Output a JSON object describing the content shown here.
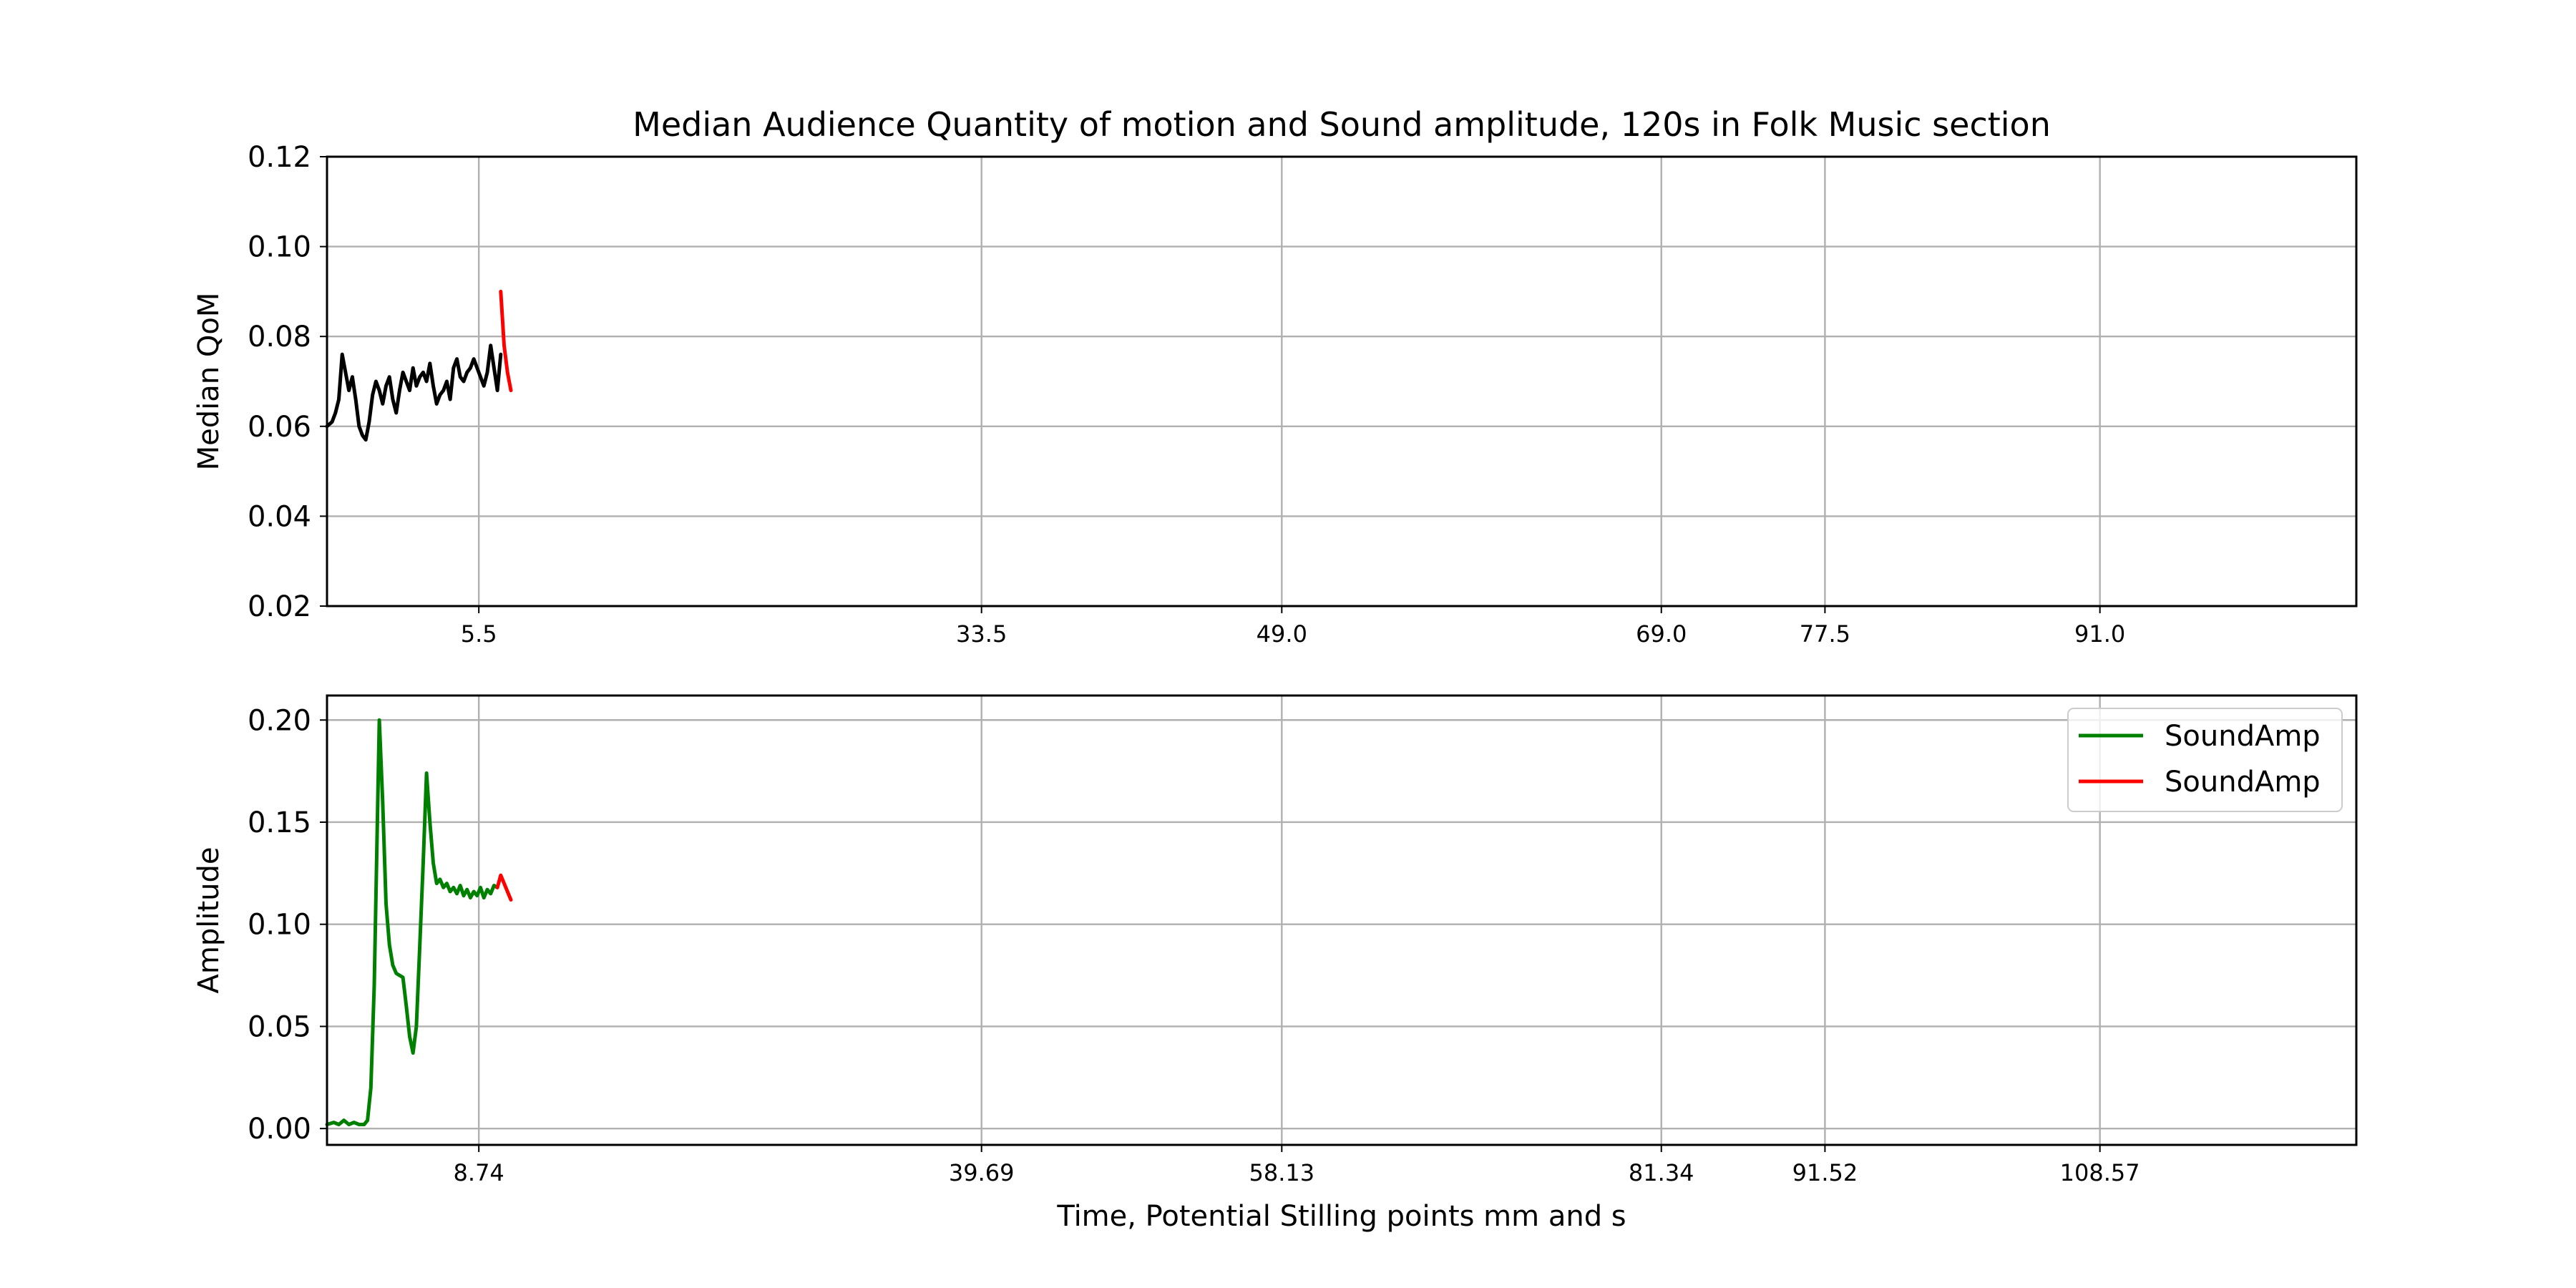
{
  "chart_data": {
    "title": "Median Audience Quantity of motion and Sound amplitude, 120s in Folk Music section",
    "xlabel": "Time, Potential Stilling points mm and s",
    "subplots": [
      {
        "type": "line",
        "ylabel": "Median QoM",
        "ylim": [
          0.02,
          0.12
        ],
        "yticks": [
          "0.12",
          "0.10",
          "0.08",
          "0.06",
          "0.04",
          "0.02"
        ],
        "xlim": [
          -0.3,
          120.0
        ],
        "xtick_values": [
          8.7,
          38.5,
          56.3,
          78.8,
          88.5,
          104.8
        ],
        "xtick_labels": [
          "5.5",
          "33.5",
          "49.0",
          "69.0",
          "77.5",
          "91.0"
        ],
        "grid": true,
        "series": [
          {
            "color": "#000000",
            "x": [
              -0.3,
              0.0,
              0.2,
              0.4,
              0.6,
              0.8,
              1.0,
              1.2,
              1.4,
              1.6,
              1.8,
              2.0,
              2.2,
              2.4,
              2.6,
              2.8,
              3.0,
              3.2,
              3.4,
              3.6,
              3.8,
              4.0,
              4.2,
              4.4,
              4.6,
              4.8,
              5.0,
              5.2,
              5.4,
              5.6,
              5.8,
              6.0,
              6.2,
              6.4,
              6.6,
              6.8,
              7.0,
              7.2,
              7.4,
              7.6,
              7.8,
              8.0,
              8.2,
              8.4,
              8.6,
              8.8,
              9.0,
              9.2,
              9.4,
              9.6,
              9.8,
              10.0
            ],
            "y": [
              0.06,
              0.061,
              0.063,
              0.066,
              0.076,
              0.072,
              0.068,
              0.071,
              0.066,
              0.06,
              0.058,
              0.057,
              0.061,
              0.067,
              0.07,
              0.068,
              0.065,
              0.069,
              0.071,
              0.066,
              0.063,
              0.068,
              0.072,
              0.07,
              0.068,
              0.073,
              0.069,
              0.071,
              0.072,
              0.07,
              0.074,
              0.069,
              0.065,
              0.067,
              0.068,
              0.07,
              0.066,
              0.073,
              0.075,
              0.071,
              0.07,
              0.072,
              0.073,
              0.075,
              0.073,
              0.071,
              0.069,
              0.072,
              0.078,
              0.073,
              0.068,
              0.076
            ]
          },
          {
            "color": "#ff0000",
            "x": [
              10.0,
              10.2,
              10.4,
              10.6
            ],
            "y": [
              0.09,
              0.078,
              0.072,
              0.068
            ]
          }
        ]
      },
      {
        "type": "line",
        "ylabel": "Amplitude",
        "ylim": [
          -0.008,
          0.212
        ],
        "yticks": [
          "0.20",
          "0.15",
          "0.10",
          "0.05",
          "0.00"
        ],
        "xlim": [
          -0.3,
          120.0
        ],
        "xtick_values": [
          8.7,
          38.5,
          56.3,
          78.8,
          88.5,
          104.8
        ],
        "xtick_labels": [
          "8.74",
          "39.69",
          "58.13",
          "81.34",
          "91.52",
          "108.57"
        ],
        "grid": true,
        "legend": {
          "placement": "upper right",
          "entries": [
            "SoundAmp",
            "SoundAmp"
          ]
        },
        "series": [
          {
            "name": "SoundAmp",
            "color": "#008000",
            "x": [
              -0.3,
              0.1,
              0.4,
              0.7,
              1.0,
              1.3,
              1.6,
              1.9,
              2.1,
              2.3,
              2.5,
              2.8,
              3.0,
              3.2,
              3.4,
              3.6,
              3.8,
              4.0,
              4.2,
              4.4,
              4.6,
              4.8,
              5.0,
              5.2,
              5.4,
              5.6,
              5.8,
              6.0,
              6.2,
              6.4,
              6.6,
              6.8,
              7.0,
              7.2,
              7.4,
              7.6,
              7.8,
              8.0,
              8.2,
              8.4,
              8.6,
              8.8,
              9.0,
              9.2,
              9.4,
              9.6,
              9.8
            ],
            "y": [
              0.002,
              0.003,
              0.002,
              0.004,
              0.002,
              0.003,
              0.002,
              0.002,
              0.004,
              0.02,
              0.07,
              0.2,
              0.16,
              0.11,
              0.09,
              0.08,
              0.076,
              0.075,
              0.074,
              0.06,
              0.045,
              0.037,
              0.05,
              0.09,
              0.13,
              0.174,
              0.15,
              0.13,
              0.12,
              0.122,
              0.118,
              0.12,
              0.116,
              0.118,
              0.115,
              0.119,
              0.114,
              0.117,
              0.113,
              0.116,
              0.114,
              0.118,
              0.113,
              0.117,
              0.115,
              0.119,
              0.118
            ]
          },
          {
            "name": "SoundAmp",
            "color": "#ff0000",
            "x": [
              9.8,
              10.0,
              10.2,
              10.4,
              10.6
            ],
            "y": [
              0.118,
              0.124,
              0.12,
              0.116,
              0.112
            ]
          }
        ]
      }
    ]
  }
}
